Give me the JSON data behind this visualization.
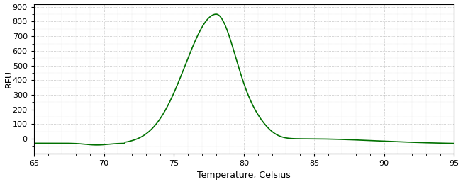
{
  "title": "",
  "xlabel": "Temperature, Celsius",
  "ylabel": "RFU",
  "xlim": [
    65,
    95
  ],
  "ylim": [
    -100,
    920
  ],
  "yticks": [
    0,
    100,
    200,
    300,
    400,
    500,
    600,
    700,
    800,
    900
  ],
  "xticks": [
    65,
    70,
    75,
    80,
    85,
    90,
    95
  ],
  "line_color": "#007000",
  "bg_color": "#ffffff",
  "plot_bg_color": "#ffffff",
  "grid_color": "#aaaaaa",
  "peak_temp": 78.0,
  "peak_rfu": 870
}
